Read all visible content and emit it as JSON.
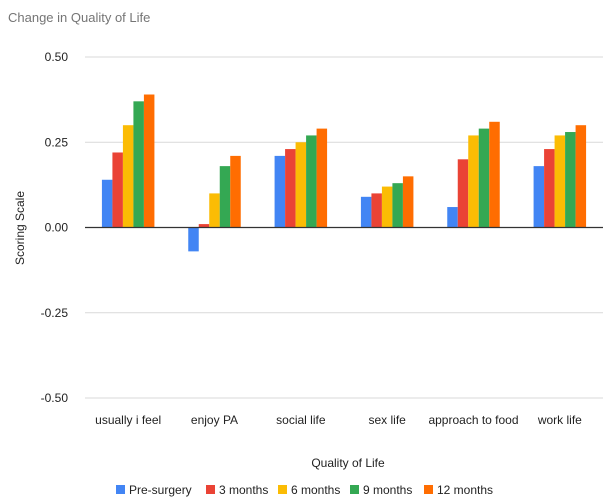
{
  "chart_data": {
    "type": "bar",
    "title": "Change in Quality of Life",
    "xlabel": "Quality of Life",
    "ylabel": "Scoring Scale",
    "ylim": [
      -0.5,
      0.5
    ],
    "yticks": [
      "0.50",
      "0.25",
      "0.00",
      "-0.25",
      "-0.50"
    ],
    "ytick_values": [
      0.5,
      0.25,
      0,
      -0.25,
      -0.5
    ],
    "grid": true,
    "legend_position": "bottom",
    "categories": [
      "usually i feel",
      "enjoy PA",
      "social life",
      "sex life",
      "approach to food",
      "work life"
    ],
    "series": [
      {
        "name": "Pre-surgery",
        "color": "#4285f4",
        "values": [
          0.14,
          -0.07,
          0.21,
          0.09,
          0.06,
          0.18
        ]
      },
      {
        "name": "3 months",
        "color": "#ea4335",
        "values": [
          0.22,
          0.01,
          0.23,
          0.1,
          0.2,
          0.23
        ]
      },
      {
        "name": "6 months",
        "color": "#fbbc04",
        "values": [
          0.3,
          0.1,
          0.25,
          0.12,
          0.27,
          0.27
        ]
      },
      {
        "name": "9 months",
        "color": "#34a853",
        "values": [
          0.37,
          0.18,
          0.27,
          0.13,
          0.29,
          0.28
        ]
      },
      {
        "name": "12 months",
        "color": "#ff6d01",
        "values": [
          0.39,
          0.21,
          0.29,
          0.15,
          0.31,
          0.3
        ]
      }
    ]
  }
}
